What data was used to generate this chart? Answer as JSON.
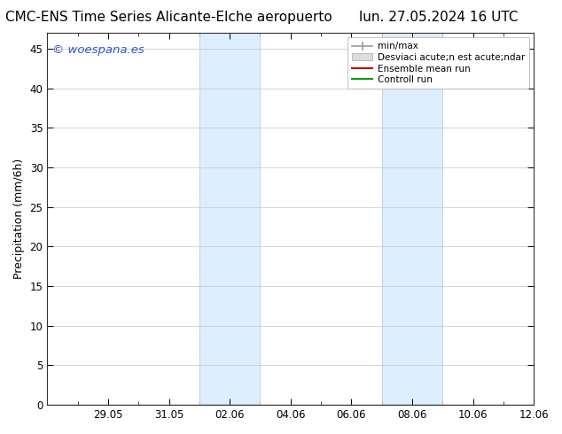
{
  "title_left": "CMC-ENS Time Series Alicante-Elche aeropuerto",
  "title_right": "lun. 27.05.2024 16 UTC",
  "ylabel": "Precipitation (mm/6h)",
  "watermark": "© woespana.es",
  "ylim": [
    0,
    47
  ],
  "yticks": [
    0,
    5,
    10,
    15,
    20,
    25,
    30,
    35,
    40,
    45
  ],
  "x_min": 0,
  "x_max": 16,
  "xtick_labels": [
    "29.05",
    "31.05",
    "02.06",
    "04.06",
    "06.06",
    "08.06",
    "10.06",
    "12.06"
  ],
  "xtick_positions": [
    2,
    4,
    6,
    8,
    10,
    12,
    14,
    16
  ],
  "shaded_bands": [
    {
      "x_start": 5.0,
      "x_end": 7.0
    },
    {
      "x_start": 11.0,
      "x_end": 13.0
    }
  ],
  "background_color": "#ffffff",
  "band_color": "#ddeeff",
  "band_edge_color": "#bbccdd",
  "grid_color": "#cccccc",
  "title_fontsize": 11,
  "axis_fontsize": 9,
  "tick_fontsize": 8.5,
  "watermark_color": "#3355cc",
  "legend_label1": "min/max",
  "legend_label2": "Desviaci acute;n est acute;ndar",
  "legend_label3": "Ensemble mean run",
  "legend_label4": "Controll run",
  "legend_color1": "#999999",
  "legend_color2": "#cccccc",
  "legend_color3": "#cc0000",
  "legend_color4": "#009900"
}
